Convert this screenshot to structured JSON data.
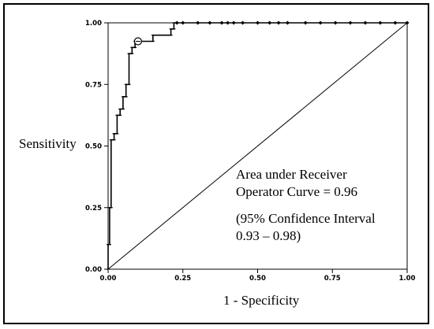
{
  "chart_data": {
    "type": "line",
    "xlabel": "1 - Specificity",
    "ylabel": "Sensitivity",
    "xlim": [
      0,
      1
    ],
    "ylim": [
      0,
      1
    ],
    "xticks": [
      "0.00",
      "0.25",
      "0.50",
      "0.75",
      "1.00"
    ],
    "yticks": [
      "0.00",
      "0.25",
      "0.50",
      "0.75",
      "1.00"
    ],
    "grid": false,
    "annotation": {
      "line1": "Area under Receiver",
      "line2": "Operator Curve = 0.96",
      "line3": "(95% Confidence Interval",
      "line4": "0.93 – 0.98)"
    },
    "reference_line": {
      "x": [
        0,
        1
      ],
      "y": [
        0,
        1
      ]
    },
    "optimal_point": {
      "x": 0.1,
      "y": 0.925
    },
    "series": [
      {
        "x": [
          0,
          0,
          0.005,
          0.005,
          0.01,
          0.01,
          0.02,
          0.02,
          0.03,
          0.03,
          0.04,
          0.04,
          0.05,
          0.05,
          0.06,
          0.06,
          0.07,
          0.07,
          0.08,
          0.08,
          0.09,
          0.09,
          0.1,
          0.1,
          0.15,
          0.15,
          0.18,
          0.18,
          0.21,
          0.21,
          0.22,
          0.22,
          1.0
        ],
        "y": [
          0,
          0.1,
          0.1,
          0.25,
          0.25,
          0.525,
          0.525,
          0.55,
          0.55,
          0.625,
          0.625,
          0.65,
          0.65,
          0.7,
          0.7,
          0.75,
          0.75,
          0.875,
          0.875,
          0.9,
          0.9,
          0.925,
          0.925,
          0.925,
          0.925,
          0.95,
          0.95,
          0.95,
          0.95,
          0.975,
          0.975,
          1.0,
          1.0
        ],
        "markers_x": [
          0.23,
          0.25,
          0.3,
          0.34,
          0.38,
          0.4,
          0.42,
          0.45,
          0.5,
          0.54,
          0.57,
          0.6,
          0.66,
          0.71,
          0.76,
          0.81,
          0.86,
          0.91,
          0.96,
          1.0
        ],
        "markers_y": 1.0
      }
    ]
  }
}
